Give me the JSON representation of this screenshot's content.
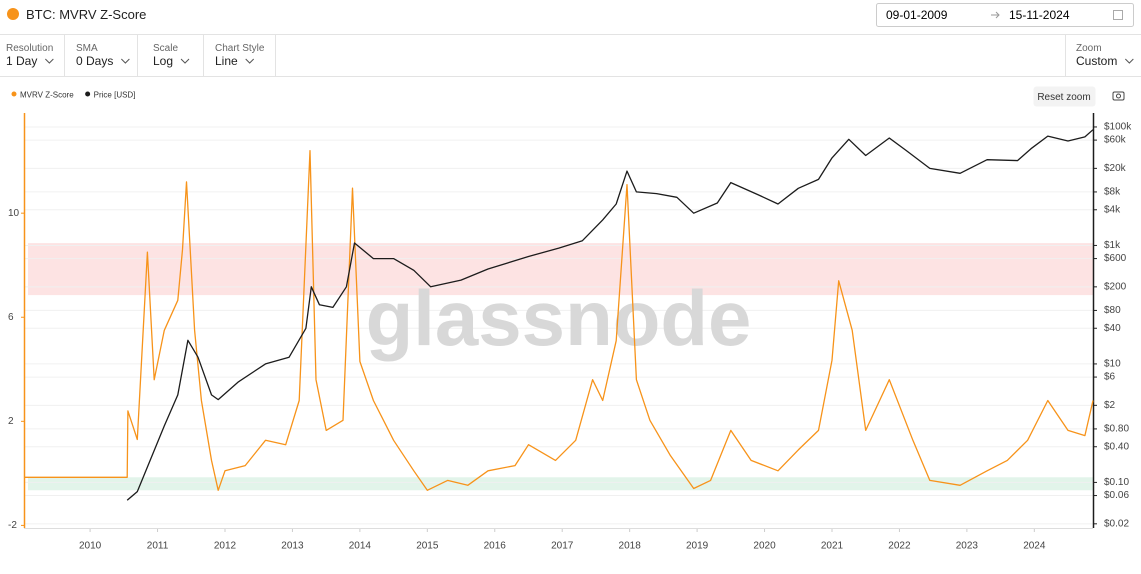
{
  "header": {
    "title": "BTC: MVRV Z-Score",
    "date_from": "09-01-2009",
    "date_to": "15-11-2024"
  },
  "controls": [
    {
      "label": "Resolution",
      "value": "1 Day"
    },
    {
      "label": "SMA",
      "value": "0 Days"
    },
    {
      "label": "Scale",
      "value": "Log"
    },
    {
      "label": "Chart Style",
      "value": "Line"
    },
    {
      "label": "Zoom",
      "value": "Custom"
    }
  ],
  "reset_zoom": "Reset zoom",
  "chart_data": {
    "type": "line",
    "watermark": "glassnode",
    "xlim": [
      2009.02,
      2024.87
    ],
    "xticks": [
      2010,
      2011,
      2012,
      2013,
      2014,
      2015,
      2016,
      2017,
      2018,
      2019,
      2020,
      2021,
      2022,
      2023,
      2024
    ],
    "ylim": [
      -2.1,
      13.85
    ],
    "yticks": [
      -2,
      2,
      6,
      10
    ],
    "y2lim": [
      0.017,
      172000
    ],
    "y2log": true,
    "y2ticks": [
      {
        "value": 100000,
        "label": "$100k"
      },
      {
        "value": 60000,
        "label": "$60k"
      },
      {
        "value": 20000,
        "label": "$20k"
      },
      {
        "value": 8000,
        "label": "$8k"
      },
      {
        "value": 4000,
        "label": "$4k"
      },
      {
        "value": 1000,
        "label": "$1k"
      },
      {
        "value": 600,
        "label": "$600"
      },
      {
        "value": 200,
        "label": "$200"
      },
      {
        "value": 80,
        "label": "$80"
      },
      {
        "value": 40,
        "label": "$40"
      },
      {
        "value": 10,
        "label": "$10"
      },
      {
        "value": 6,
        "label": "$6"
      },
      {
        "value": 2,
        "label": "$2"
      },
      {
        "value": 0.8,
        "label": "$0.80"
      },
      {
        "value": 0.4,
        "label": "$0.40"
      },
      {
        "value": 0.1,
        "label": "$0.10"
      },
      {
        "value": 0.06,
        "label": "$0.06"
      },
      {
        "value": 0.02,
        "label": "$0.02"
      }
    ],
    "bands": [
      {
        "from": 6.85,
        "to": 8.85,
        "color": "#fde3e3"
      },
      {
        "from": -0.65,
        "to": -0.15,
        "color": "#e2f4ea"
      }
    ],
    "series": [
      {
        "name": "MVRV Z-Score",
        "color": "#f7931a",
        "axis": "y",
        "x": [
          2009.02,
          2010.55,
          2010.56,
          2010.7,
          2010.85,
          2010.95,
          2011.1,
          2011.3,
          2011.37,
          2011.43,
          2011.55,
          2011.65,
          2011.8,
          2011.9,
          2012.0,
          2012.3,
          2012.6,
          2012.9,
          2013.1,
          2013.26,
          2013.35,
          2013.5,
          2013.75,
          2013.89,
          2014.0,
          2014.2,
          2014.5,
          2014.8,
          2015.0,
          2015.3,
          2015.6,
          2015.9,
          2016.3,
          2016.5,
          2016.9,
          2017.2,
          2017.45,
          2017.6,
          2017.8,
          2017.96,
          2018.1,
          2018.3,
          2018.6,
          2018.95,
          2019.2,
          2019.5,
          2019.8,
          2020.2,
          2020.5,
          2020.8,
          2021.0,
          2021.1,
          2021.3,
          2021.5,
          2021.85,
          2022.2,
          2022.45,
          2022.9,
          2023.3,
          2023.6,
          2023.9,
          2024.2,
          2024.5,
          2024.75,
          2024.87
        ],
        "values": [
          -0.15,
          -0.15,
          2.4,
          1.3,
          8.5,
          3.6,
          5.5,
          6.65,
          8.6,
          11.2,
          5.5,
          2.8,
          0.5,
          -0.65,
          0.1,
          0.3,
          1.27,
          1.1,
          2.8,
          12.4,
          3.6,
          1.65,
          2.04,
          10.96,
          4.3,
          2.8,
          1.27,
          0.1,
          -0.65,
          -0.27,
          -0.46,
          0.1,
          0.3,
          1.1,
          0.5,
          1.27,
          3.6,
          2.8,
          5.1,
          11.1,
          3.6,
          2.04,
          0.7,
          -0.58,
          -0.27,
          1.65,
          0.5,
          0.1,
          0.9,
          1.65,
          4.35,
          7.4,
          5.5,
          1.65,
          3.6,
          1.27,
          -0.27,
          -0.46,
          0.1,
          0.5,
          1.27,
          2.8,
          1.65,
          1.45,
          2.8
        ]
      },
      {
        "name": "Price [USD]",
        "color": "#1c1c1c",
        "axis": "y2",
        "x": [
          2010.55,
          2010.7,
          2010.9,
          2011.1,
          2011.3,
          2011.45,
          2011.6,
          2011.8,
          2011.9,
          2012.2,
          2012.6,
          2012.95,
          2013.2,
          2013.28,
          2013.4,
          2013.6,
          2013.8,
          2013.92,
          2014.2,
          2014.5,
          2014.8,
          2015.05,
          2015.5,
          2015.9,
          2016.5,
          2016.95,
          2017.3,
          2017.6,
          2017.8,
          2017.96,
          2018.1,
          2018.4,
          2018.7,
          2018.95,
          2019.3,
          2019.5,
          2019.9,
          2020.2,
          2020.5,
          2020.8,
          2021.0,
          2021.25,
          2021.5,
          2021.85,
          2022.1,
          2022.45,
          2022.9,
          2023.3,
          2023.75,
          2023.95,
          2024.2,
          2024.5,
          2024.75,
          2024.87
        ],
        "values": [
          0.05,
          0.07,
          0.25,
          0.9,
          3,
          25,
          13,
          3,
          2.5,
          5,
          10,
          13,
          40,
          200,
          100,
          90,
          200,
          1100,
          600,
          600,
          380,
          200,
          260,
          400,
          650,
          900,
          1200,
          2700,
          5000,
          18000,
          8000,
          7500,
          6500,
          3500,
          5200,
          11500,
          7200,
          5000,
          9200,
          13000,
          30000,
          62000,
          33000,
          65000,
          40000,
          20000,
          16500,
          28000,
          27000,
          43000,
          70000,
          58000,
          68000,
          90000
        ]
      }
    ]
  }
}
